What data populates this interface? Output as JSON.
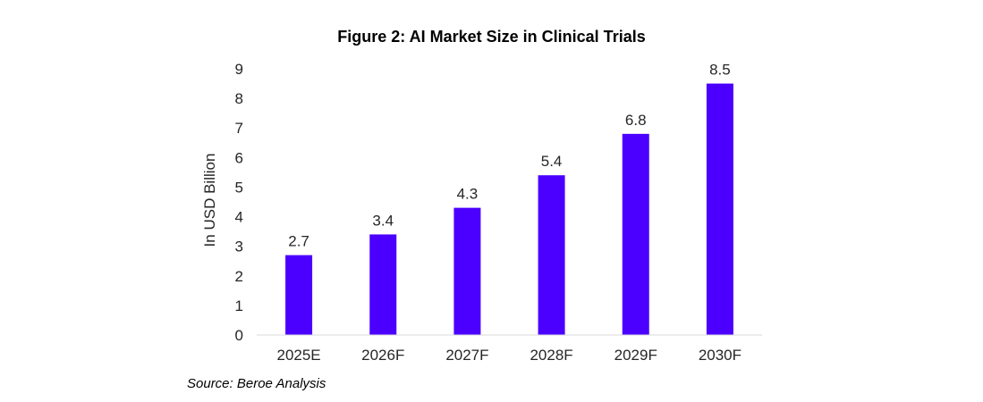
{
  "source": "Source: Beroe Analysis",
  "chart_data": {
    "type": "bar",
    "title": "Figure 2: AI Market Size in Clinical Trials",
    "xlabel": "",
    "ylabel": "In USD Billion",
    "categories": [
      "2025E",
      "2026F",
      "2027F",
      "2028F",
      "2029F",
      "2030F"
    ],
    "series": [
      {
        "values": [
          2.7,
          3.4,
          4.3,
          5.4,
          6.8,
          8.5
        ]
      }
    ],
    "data_labels": [
      "2.7",
      "3.4",
      "4.3",
      "5.4",
      "6.8",
      "8.5"
    ],
    "ylim": [
      0,
      9
    ],
    "yticks": [
      0,
      1,
      2,
      3,
      4,
      5,
      6,
      7,
      8,
      9
    ],
    "grid": false,
    "legend": "none",
    "bar_color": "#4B00FF",
    "axis_color": "#d9d9d9"
  }
}
